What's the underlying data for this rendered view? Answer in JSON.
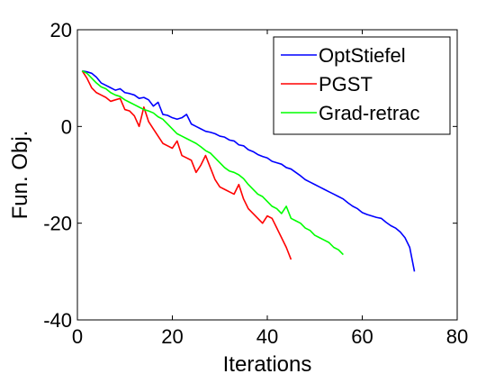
{
  "chart_data": {
    "type": "line",
    "title": "",
    "xlabel": "Iterations",
    "ylabel": "Fun. Obj.",
    "xlim": [
      0,
      80
    ],
    "ylim": [
      -40,
      20
    ],
    "xticks": [
      0,
      20,
      40,
      60,
      80
    ],
    "yticks": [
      -40,
      -20,
      0,
      20
    ],
    "xtick_labels": [
      "0",
      "20",
      "40",
      "60",
      "80"
    ],
    "ytick_labels": [
      "-40",
      "-20",
      "0",
      "20"
    ],
    "grid": false,
    "legend_position": "top-right",
    "series": [
      {
        "name": "OptStiefel",
        "color": "#0000ff",
        "x": [
          1,
          2,
          3,
          4,
          5,
          6,
          7,
          8,
          9,
          10,
          11,
          12,
          13,
          14,
          15,
          16,
          17,
          18,
          19,
          20,
          21,
          22,
          23,
          24,
          25,
          26,
          27,
          28,
          29,
          30,
          31,
          32,
          33,
          34,
          35,
          36,
          37,
          38,
          39,
          40,
          41,
          42,
          43,
          44,
          45,
          46,
          47,
          48,
          49,
          50,
          51,
          52,
          53,
          54,
          55,
          56,
          57,
          58,
          59,
          60,
          61,
          62,
          63,
          64,
          65,
          66,
          67,
          68,
          69,
          70,
          71
        ],
        "values": [
          11.5,
          11.3,
          11.0,
          10.2,
          9.0,
          8.5,
          8.0,
          7.5,
          7.8,
          7.0,
          6.8,
          6.5,
          5.8,
          6.0,
          5.5,
          4.2,
          5.0,
          2.5,
          2.3,
          1.8,
          1.5,
          1.8,
          2.5,
          0.5,
          0.0,
          -0.5,
          -1.0,
          -1.2,
          -1.5,
          -2.0,
          -2.2,
          -2.8,
          -3.0,
          -3.8,
          -4.0,
          -4.8,
          -5.2,
          -5.8,
          -6.2,
          -6.5,
          -7.2,
          -7.5,
          -7.8,
          -8.5,
          -8.8,
          -9.5,
          -10.2,
          -11.0,
          -11.5,
          -12.0,
          -12.5,
          -13.0,
          -13.5,
          -14.0,
          -14.5,
          -15.0,
          -15.8,
          -16.5,
          -17.0,
          -17.8,
          -18.2,
          -18.5,
          -18.8,
          -19.0,
          -19.8,
          -20.5,
          -21.0,
          -21.8,
          -23.0,
          -25.0,
          -30.0
        ]
      },
      {
        "name": "PGST",
        "color": "#ff0000",
        "x": [
          1,
          2,
          3,
          4,
          5,
          6,
          7,
          8,
          9,
          10,
          11,
          12,
          13,
          14,
          15,
          16,
          17,
          18,
          19,
          20,
          21,
          22,
          23,
          24,
          25,
          26,
          27,
          28,
          29,
          30,
          31,
          32,
          33,
          34,
          35,
          36,
          37,
          38,
          39,
          40,
          41,
          42,
          43,
          44,
          45
        ],
        "values": [
          11.5,
          10.0,
          8.0,
          7.0,
          6.5,
          6.0,
          5.2,
          5.5,
          5.8,
          3.5,
          3.2,
          2.2,
          0.0,
          4.0,
          1.0,
          -0.5,
          -2.0,
          -3.5,
          -4.0,
          -4.5,
          -3.0,
          -6.0,
          -6.5,
          -7.0,
          -9.5,
          -8.0,
          -6.0,
          -8.5,
          -11.0,
          -12.5,
          -13.0,
          -13.5,
          -14.0,
          -12.0,
          -15.0,
          -17.0,
          -18.0,
          -19.0,
          -20.0,
          -18.5,
          -19.0,
          -21.0,
          -23.0,
          -25.0,
          -27.5
        ]
      },
      {
        "name": "Grad-retrac",
        "color": "#00ff00",
        "x": [
          1,
          2,
          3,
          4,
          5,
          6,
          7,
          8,
          9,
          10,
          11,
          12,
          13,
          14,
          15,
          16,
          17,
          18,
          19,
          20,
          21,
          22,
          23,
          24,
          25,
          26,
          27,
          28,
          29,
          30,
          31,
          32,
          33,
          34,
          35,
          36,
          37,
          38,
          39,
          40,
          41,
          42,
          43,
          44,
          45,
          46,
          47,
          48,
          49,
          50,
          51,
          52,
          53,
          54,
          55,
          56
        ],
        "values": [
          11.5,
          11.0,
          10.0,
          9.0,
          8.2,
          7.8,
          7.0,
          6.5,
          6.2,
          5.5,
          5.0,
          4.5,
          4.0,
          3.5,
          3.2,
          2.8,
          2.0,
          1.5,
          0.5,
          -0.5,
          -1.5,
          -2.0,
          -2.5,
          -3.0,
          -3.5,
          -4.2,
          -5.0,
          -5.5,
          -6.5,
          -7.5,
          -8.5,
          -9.2,
          -9.5,
          -10.0,
          -10.8,
          -12.0,
          -13.0,
          -14.0,
          -14.5,
          -15.5,
          -16.5,
          -17.0,
          -18.0,
          -16.5,
          -19.0,
          -19.5,
          -20.0,
          -21.0,
          -21.5,
          -22.5,
          -23.0,
          -23.5,
          -24.0,
          -25.0,
          -25.5,
          -26.5
        ]
      }
    ]
  }
}
